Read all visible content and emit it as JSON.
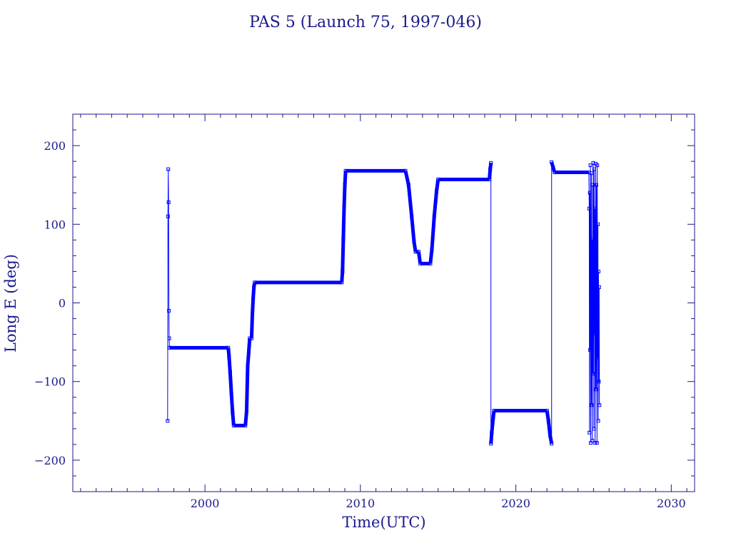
{
  "chart_data": {
    "type": "line",
    "title": "PAS 5 (Launch 75, 1997-046)",
    "xlabel": "Time(UTC)",
    "ylabel": "Long E (deg)",
    "xlim": [
      1991.5,
      2031.5
    ],
    "ylim": [
      -240,
      240
    ],
    "x_ticks": [
      2000,
      2010,
      2020,
      2030
    ],
    "x_tick_labels": [
      "2000",
      "2010",
      "2020",
      "2030"
    ],
    "y_ticks": [
      200,
      100,
      0,
      -100,
      -200
    ],
    "y_tick_labels": [
      "200",
      "100",
      "0",
      "−100",
      "−200"
    ],
    "grid": false,
    "colors": {
      "series": "#0000ff",
      "axes": "#1a1a8c",
      "text": "#1a1a8c"
    },
    "series": [
      {
        "points": [
          [
            1997.6,
            -150
          ],
          [
            1997.62,
            110
          ],
          [
            1997.64,
            170
          ],
          [
            1997.66,
            128
          ],
          [
            1997.68,
            -10
          ],
          [
            1997.7,
            -45
          ],
          [
            1997.72,
            -57
          ],
          [
            2001.5,
            -57
          ],
          [
            2001.55,
            -68
          ],
          [
            2001.62,
            -88
          ],
          [
            2001.7,
            -115
          ],
          [
            2001.78,
            -140
          ],
          [
            2001.85,
            -156
          ],
          [
            2002.6,
            -156
          ],
          [
            2002.68,
            -138
          ],
          [
            2002.75,
            -80
          ],
          [
            2002.82,
            -62
          ],
          [
            2002.88,
            -45
          ],
          [
            2003.0,
            -45
          ],
          [
            2003.05,
            -15
          ],
          [
            2003.1,
            5
          ],
          [
            2003.15,
            20
          ],
          [
            2003.2,
            26
          ],
          [
            2008.8,
            26
          ],
          [
            2008.85,
            40
          ],
          [
            2008.9,
            80
          ],
          [
            2008.95,
            120
          ],
          [
            2009.0,
            150
          ],
          [
            2009.05,
            168
          ],
          [
            2012.9,
            168
          ],
          [
            2013.1,
            150
          ],
          [
            2013.3,
            110
          ],
          [
            2013.45,
            78
          ],
          [
            2013.55,
            65
          ],
          [
            2013.75,
            65
          ],
          [
            2013.85,
            50
          ],
          [
            2014.5,
            50
          ],
          [
            2014.6,
            68
          ],
          [
            2014.75,
            110
          ],
          [
            2014.9,
            142
          ],
          [
            2015.0,
            157
          ],
          [
            2018.3,
            157
          ],
          [
            2018.35,
            170
          ],
          [
            2018.4,
            178
          ],
          [
            2018.4,
            -179
          ],
          [
            2018.45,
            -165
          ],
          [
            2018.55,
            -145
          ],
          [
            2018.6,
            -137
          ],
          [
            2022.0,
            -137
          ],
          [
            2022.1,
            -150
          ],
          [
            2022.2,
            -168
          ],
          [
            2022.3,
            -179
          ],
          [
            2022.3,
            179
          ],
          [
            2022.4,
            172
          ],
          [
            2022.5,
            166
          ],
          [
            2024.7,
            166
          ],
          [
            2024.72,
            120
          ],
          [
            2024.74,
            -165
          ],
          [
            2024.76,
            140
          ],
          [
            2024.78,
            -60
          ],
          [
            2024.8,
            175
          ],
          [
            2024.82,
            -178
          ],
          [
            2024.84,
            30
          ],
          [
            2024.86,
            165
          ],
          [
            2024.88,
            -130
          ],
          [
            2024.9,
            80
          ],
          [
            2024.92,
            -175
          ],
          [
            2024.94,
            150
          ],
          [
            2024.96,
            -90
          ],
          [
            2024.98,
            178
          ],
          [
            2025.0,
            10
          ],
          [
            2025.02,
            -160
          ],
          [
            2025.04,
            170
          ],
          [
            2025.06,
            -40
          ],
          [
            2025.08,
            120
          ],
          [
            2025.1,
            -178
          ],
          [
            2025.12,
            60
          ],
          [
            2025.14,
            177
          ],
          [
            2025.16,
            -110
          ],
          [
            2025.18,
            150
          ],
          [
            2025.2,
            -20
          ],
          [
            2025.22,
            -178
          ],
          [
            2025.24,
            175
          ],
          [
            2025.26,
            -70
          ],
          [
            2025.28,
            100
          ],
          [
            2025.3,
            -150
          ],
          [
            2025.32,
            40
          ],
          [
            2025.34,
            -100
          ],
          [
            2025.36,
            20
          ],
          [
            2025.38,
            -130
          ]
        ]
      }
    ]
  }
}
